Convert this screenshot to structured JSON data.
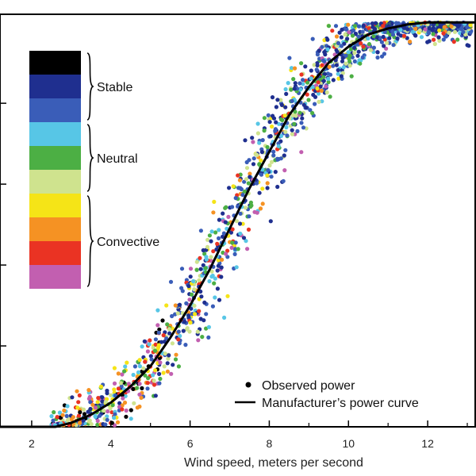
{
  "chart_data": {
    "type": "scatter",
    "title": "",
    "xlabel": "Wind speed, meters per second",
    "ylabel": "",
    "xlim": [
      1.2,
      13.2
    ],
    "ylim": [
      0,
      1.02
    ],
    "x_ticks": [
      2,
      4,
      6,
      8,
      10,
      12
    ],
    "grid": false,
    "stability_scale": {
      "colors": [
        "#000000",
        "#1f2f8f",
        "#3a5db8",
        "#57c6e6",
        "#4caf44",
        "#cfe38e",
        "#f5e417",
        "#f59223",
        "#ea3323",
        "#c25fb0"
      ],
      "groups": [
        {
          "label": "Stable",
          "colors": [
            "#000000",
            "#1f2f8f",
            "#3a5db8"
          ]
        },
        {
          "label": "Neutral",
          "colors": [
            "#57c6e6",
            "#4caf44",
            "#cfe38e"
          ]
        },
        {
          "label": "Convective",
          "colors": [
            "#f5e417",
            "#f59223",
            "#ea3323",
            "#c25fb0"
          ]
        }
      ]
    },
    "key": {
      "points_label": "Observed power",
      "curve_label": "Manufacturer’s power curve"
    },
    "power_curve": {
      "x": [
        1.2,
        2.6,
        3.0,
        3.5,
        4.0,
        4.5,
        5.0,
        5.5,
        6.0,
        6.5,
        7.0,
        7.5,
        8.0,
        8.5,
        9.0,
        9.5,
        10.0,
        10.5,
        11.0,
        11.5,
        12.0,
        12.5,
        13.2
      ],
      "y": [
        0.0,
        0.0,
        0.01,
        0.03,
        0.06,
        0.1,
        0.15,
        0.22,
        0.3,
        0.39,
        0.49,
        0.59,
        0.68,
        0.77,
        0.84,
        0.9,
        0.94,
        0.97,
        0.985,
        0.995,
        1.0,
        1.0,
        1.0
      ]
    },
    "observed_points": {
      "count": 1500,
      "spread_y": 0.055,
      "seed": 7
    }
  }
}
